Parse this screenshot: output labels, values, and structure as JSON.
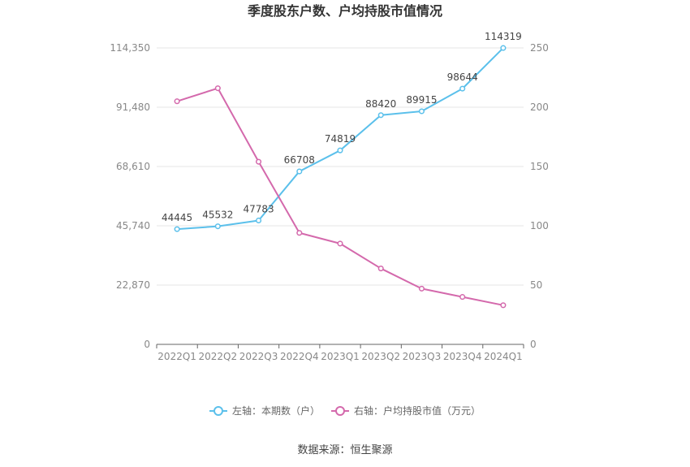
{
  "chart_data": {
    "type": "line",
    "title": "季度股东户数、户均持股市值情况",
    "categories": [
      "2022Q1",
      "2022Q2",
      "2022Q3",
      "2022Q4",
      "2023Q1",
      "2023Q2",
      "2023Q3",
      "2023Q4",
      "2024Q1"
    ],
    "left_axis": {
      "min": 0,
      "max": 114350,
      "ticks": [
        "0",
        "22,870",
        "45,740",
        "68,610",
        "91,480",
        "114,350"
      ]
    },
    "right_axis": {
      "min": 0,
      "max": 250,
      "ticks": [
        "0",
        "50",
        "100",
        "150",
        "200",
        "250"
      ]
    },
    "series": [
      {
        "name": "左轴：本期数（户）",
        "axis": "left",
        "color": "#5bc0eb",
        "values": [
          44445,
          45532,
          47783,
          66708,
          74819,
          88420,
          89915,
          98644,
          114319
        ],
        "labels": [
          "44445",
          "45532",
          "47783",
          "66708",
          "74819",
          "88420",
          "89915",
          "98644",
          "114319"
        ]
      },
      {
        "name": "右轴：户均持股市值（万元）",
        "axis": "right",
        "color": "#d469ac",
        "values": [
          205,
          216,
          154,
          94,
          85,
          64,
          47,
          40,
          33
        ]
      }
    ],
    "grid": true,
    "legend_position": "bottom"
  },
  "source": "数据来源：恒生聚源"
}
